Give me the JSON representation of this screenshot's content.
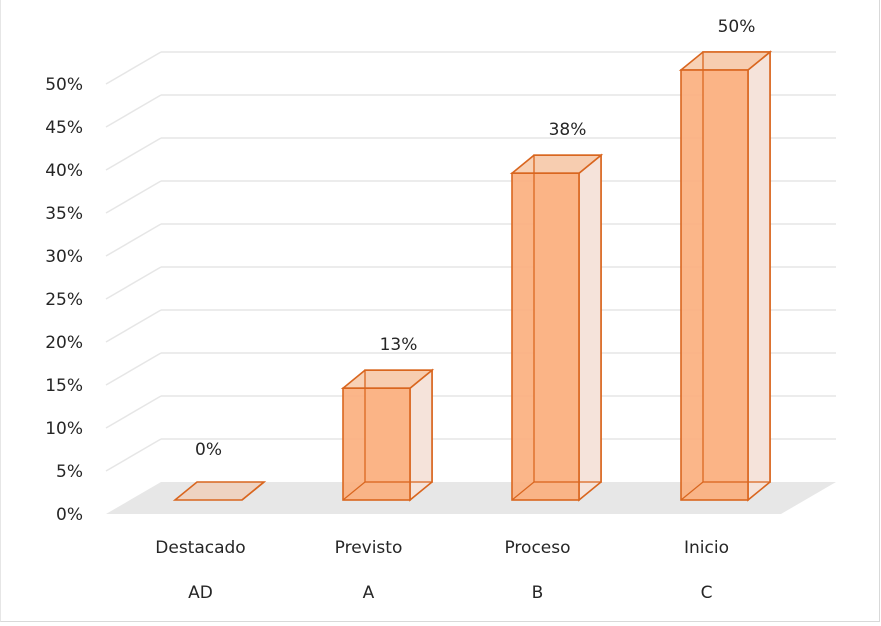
{
  "chart_data": {
    "type": "bar",
    "style": "3d-column",
    "categories": [
      {
        "name": "Destacado",
        "code": "AD"
      },
      {
        "name": "Previsto",
        "code": "A"
      },
      {
        "name": "Proceso",
        "code": "B"
      },
      {
        "name": "Inicio",
        "code": "C"
      }
    ],
    "values": [
      0,
      13,
      38,
      50
    ],
    "data_labels": [
      "0%",
      "13%",
      "38%",
      "50%"
    ],
    "y_ticks": [
      "0%",
      "5%",
      "10%",
      "15%",
      "20%",
      "25%",
      "30%",
      "35%",
      "40%",
      "45%",
      "50%"
    ],
    "ylim": [
      0,
      50
    ],
    "unit": "%",
    "grid": true,
    "legend": "none",
    "colors": {
      "bar_front": "#fbb07f",
      "bar_back": "#f5e3da",
      "bar_stroke": "#d9661f",
      "floor": "#e7e7e7",
      "grid": "#e6e6e6",
      "text": "#262626"
    }
  }
}
